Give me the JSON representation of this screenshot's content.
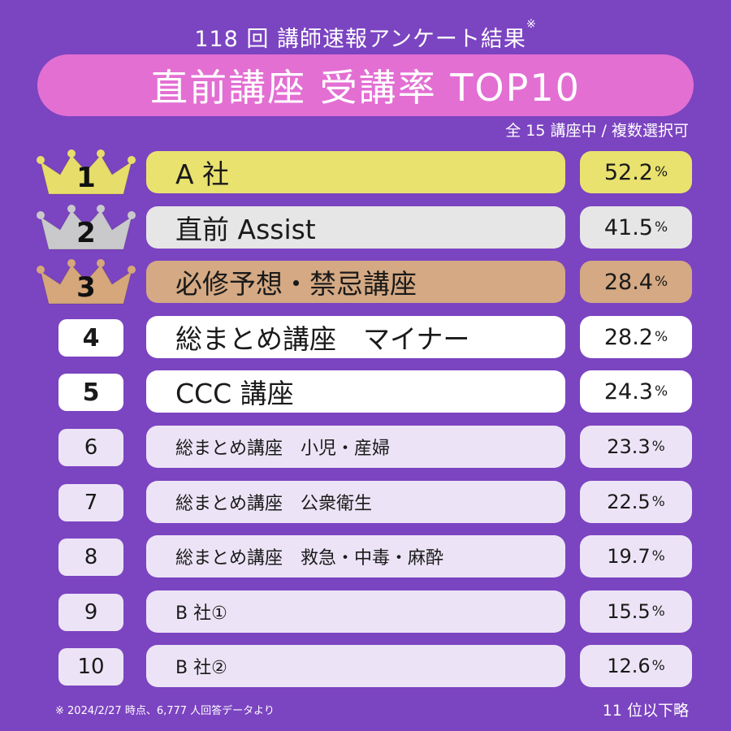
{
  "header": {
    "survey_title": "118 回 講師速報アンケート結果",
    "survey_title_mark": "※",
    "chart_title": "直前講座 受講率 TOP10",
    "subnote": "全 15 講座中 / 複数選択可"
  },
  "footer": {
    "source_note": "※ 2024/2/27 時点、6,777 人回答データより",
    "omitted_note": "11 位以下略"
  },
  "colors": {
    "background": "#7b44c1",
    "title_pill": "#e36fd3",
    "rank1": "#e9e26f",
    "rank2": "#e6e6e6",
    "rank3": "#d4a983",
    "row_default": "#ffffff",
    "row_light": "#ece4f6",
    "crown_gold": "#e7dd6a",
    "crown_silver": "#c9c9cb",
    "crown_bronze": "#d6a77a"
  },
  "chart_data": {
    "type": "table",
    "title": "直前講座 受講率 TOP10",
    "unit": "%",
    "columns": [
      "rank",
      "name",
      "rate"
    ],
    "rows": [
      {
        "rank": "1",
        "name": "A 社",
        "rate": "52.2",
        "crown": "gold"
      },
      {
        "rank": "2",
        "name": "直前 Assist",
        "rate": "41.5",
        "crown": "silver"
      },
      {
        "rank": "3",
        "name": "必修予想・禁忌講座",
        "rate": "28.4",
        "crown": "bronze"
      },
      {
        "rank": "4",
        "name": "総まとめ講座　マイナー",
        "rate": "28.2"
      },
      {
        "rank": "5",
        "name": "CCC 講座",
        "rate": "24.3"
      },
      {
        "rank": "6",
        "name": "総まとめ講座　小児・産婦",
        "rate": "23.3"
      },
      {
        "rank": "7",
        "name": "総まとめ講座　公衆衛生",
        "rate": "22.5"
      },
      {
        "rank": "8",
        "name": "総まとめ講座　救急・中毒・麻酔",
        "rate": "19.7"
      },
      {
        "rank": "9",
        "name": "B 社①",
        "rate": "15.5"
      },
      {
        "rank": "10",
        "name": "B 社②",
        "rate": "12.6"
      }
    ]
  }
}
